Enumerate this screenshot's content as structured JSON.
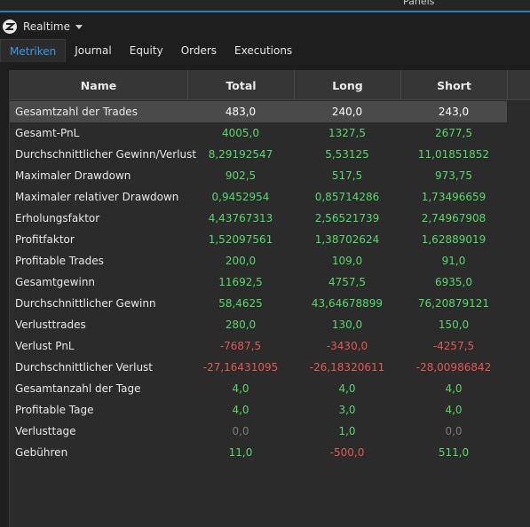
{
  "topbar": {
    "panels_label": "Panels"
  },
  "header": {
    "title": "Realtime"
  },
  "tabs": [
    "Metriken",
    "Journal",
    "Equity",
    "Orders",
    "Executions"
  ],
  "table": {
    "columns": [
      "Name",
      "Total",
      "Long",
      "Short"
    ],
    "rows": [
      {
        "name": "Gesamtzahl der Trades",
        "total": "483,0",
        "long": "240,0",
        "short": "243,0",
        "colors": [
          "white",
          "white",
          "white"
        ]
      },
      {
        "name": "Gesamt-PnL",
        "total": "4005,0",
        "long": "1327,5",
        "short": "2677,5",
        "colors": [
          "green",
          "green",
          "green"
        ]
      },
      {
        "name": "Durchschnittlicher Gewinn/Verlust",
        "total": "8,29192547",
        "long": "5,53125",
        "short": "11,01851852",
        "colors": [
          "green",
          "green",
          "green"
        ]
      },
      {
        "name": "Maximaler Drawdown",
        "total": "902,5",
        "long": "517,5",
        "short": "973,75",
        "colors": [
          "green",
          "green",
          "green"
        ]
      },
      {
        "name": "Maximaler relativer Drawdown",
        "total": "0,9452954",
        "long": "0,85714286",
        "short": "1,73496659",
        "colors": [
          "green",
          "green",
          "green"
        ]
      },
      {
        "name": "Erholungsfaktor",
        "total": "4,43767313",
        "long": "2,56521739",
        "short": "2,74967908",
        "colors": [
          "green",
          "green",
          "green"
        ]
      },
      {
        "name": "Profitfaktor",
        "total": "1,52097561",
        "long": "1,38702624",
        "short": "1,62889019",
        "colors": [
          "green",
          "green",
          "green"
        ]
      },
      {
        "name": "Profitable Trades",
        "total": "200,0",
        "long": "109,0",
        "short": "91,0",
        "colors": [
          "green",
          "green",
          "green"
        ]
      },
      {
        "name": "Gesamtgewinn",
        "total": "11692,5",
        "long": "4757,5",
        "short": "6935,0",
        "colors": [
          "green",
          "green",
          "green"
        ]
      },
      {
        "name": "Durchschnittlicher Gewinn",
        "total": "58,4625",
        "long": "43,64678899",
        "short": "76,20879121",
        "colors": [
          "green",
          "green",
          "green"
        ]
      },
      {
        "name": "Verlusttrades",
        "total": "280,0",
        "long": "130,0",
        "short": "150,0",
        "colors": [
          "green",
          "green",
          "green"
        ]
      },
      {
        "name": "Verlust PnL",
        "total": "-7687,5",
        "long": "-3430,0",
        "short": "-4257,5",
        "colors": [
          "red",
          "red",
          "red"
        ]
      },
      {
        "name": "Durchschnittlicher Verlust",
        "total": "-27,16431095",
        "long": "-26,18320611",
        "short": "-28,00986842",
        "colors": [
          "red",
          "red",
          "red"
        ]
      },
      {
        "name": "Gesamtanzahl der Tage",
        "total": "4,0",
        "long": "4,0",
        "short": "4,0",
        "colors": [
          "green",
          "green",
          "green"
        ]
      },
      {
        "name": "Profitable Tage",
        "total": "4,0",
        "long": "3,0",
        "short": "4,0",
        "colors": [
          "green",
          "green",
          "green"
        ]
      },
      {
        "name": "Verlusttage",
        "total": "0,0",
        "long": "1,0",
        "short": "0,0",
        "colors": [
          "gray",
          "green",
          "gray"
        ]
      },
      {
        "name": "Gebühren",
        "total": "11,0",
        "long": "-500,0",
        "short": "511,0",
        "colors": [
          "green",
          "red",
          "green"
        ]
      }
    ]
  },
  "colors": {
    "accent": "#2a7fc4",
    "tab_active": "#3f9ae6",
    "positive": "#58d86a",
    "negative": "#e05a55",
    "neutral": "#7a7a7a"
  }
}
